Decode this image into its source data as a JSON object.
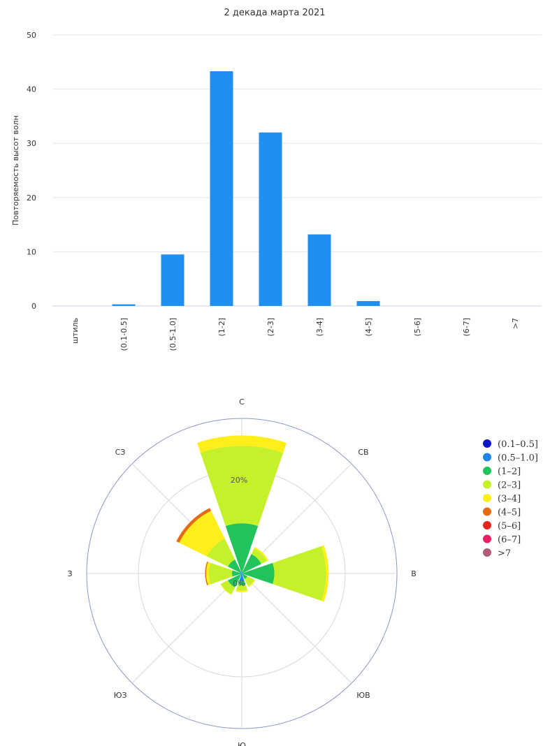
{
  "chart_data": [
    {
      "type": "bar",
      "title": "2 декада марта 2021",
      "ylabel": "Повторяемость высот волн",
      "xlabel": "",
      "ylim": [
        0,
        50
      ],
      "yticks": [
        0,
        10,
        20,
        30,
        40,
        50
      ],
      "categories": [
        "штиль",
        "(0.1-0.5]",
        "(0.5-1.0]",
        "(1-2]",
        "(2-3]",
        "(3-4]",
        "(4-5]",
        "(5-6]",
        "(6-7]",
        ">7"
      ],
      "values": [
        0,
        0.3,
        9.5,
        43.3,
        32.0,
        13.2,
        0.9,
        0,
        0,
        0
      ],
      "color": "#1f8ef1",
      "grid": true
    },
    {
      "type": "polar-stacked-bar",
      "directions": [
        "С",
        "СВ",
        "В",
        "ЮВ",
        "Ю",
        "ЮЗ",
        "З",
        "СЗ"
      ],
      "radial_unit": "%",
      "radial_ticks": [
        0,
        20
      ],
      "radial_max": 30,
      "legend_position": "right",
      "series": [
        {
          "name": "(0.1–0.5]",
          "color": "#0a14c8",
          "values": [
            0,
            0,
            0,
            0,
            0,
            0,
            0,
            0
          ]
        },
        {
          "name": "(0.5–1.0]",
          "color": "#1f86e8",
          "values": [
            0.2,
            0.2,
            0.3,
            0,
            1.5,
            0,
            0.4,
            0.5
          ]
        },
        {
          "name": "(1–2]",
          "color": "#21c45a",
          "values": [
            9.5,
            4.0,
            6.0,
            1.2,
            0.8,
            3.0,
            1.5,
            2.5
          ]
        },
        {
          "name": "(2–3]",
          "color": "#c5f12a",
          "values": [
            15.0,
            1.2,
            10.0,
            1.5,
            1.0,
            1.5,
            4.5,
            4.5
          ]
        },
        {
          "name": "(3–4]",
          "color": "#ffee1a",
          "values": [
            2.0,
            0.3,
            0.5,
            0.2,
            0.3,
            0.1,
            0.5,
            6.0
          ]
        },
        {
          "name": "(4–5]",
          "color": "#e56a14",
          "values": [
            0,
            0,
            0,
            0,
            0,
            0,
            0.2,
            0.6
          ]
        },
        {
          "name": "(5–6]",
          "color": "#e0261a",
          "values": [
            0,
            0,
            0,
            0,
            0,
            0,
            0,
            0
          ]
        },
        {
          "name": "(6–7]",
          "color": "#e91e63",
          "values": [
            0,
            0,
            0,
            0,
            0,
            0,
            0,
            0
          ]
        },
        {
          "name": ">7",
          "color": "#b35a7a",
          "values": [
            0,
            0,
            0,
            0,
            0,
            0,
            0,
            0
          ]
        }
      ]
    }
  ]
}
